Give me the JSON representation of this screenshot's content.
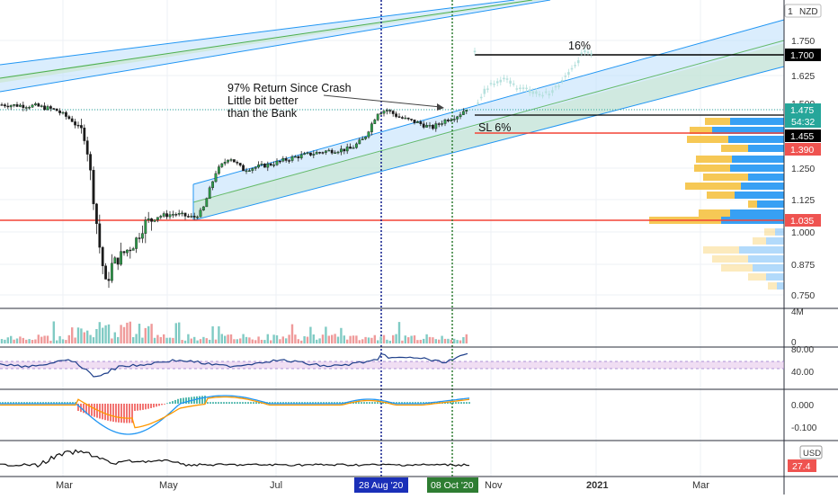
{
  "currency": "NZD",
  "volume_currency": "USD",
  "colors": {
    "up": "#26a69a",
    "down": "#ef5350",
    "projection": "#b2dfdb",
    "channel_fill": "#bbdefb",
    "channel_line": "#2196f3",
    "channel_mid_fill": "#c8e6c9",
    "support_line": "#f44336",
    "target_line": "#000000",
    "vline_blue": "#0d1b8c",
    "vline_green": "#2e7d32",
    "macd_line": "#2196f3",
    "signal_line": "#ff9800",
    "rsi_line": "#1e3f8a",
    "vp_up": "#2196f3",
    "vp_down": "#f5c242"
  },
  "annotations": {
    "note_line1": "97% Return Since Crash",
    "note_line2": "Little bit better",
    "note_line3": "than the Bank",
    "target_pct": "16%",
    "stop_loss": "SL 6%"
  },
  "price_axis": {
    "ticks": [
      "1.750",
      "1.625",
      "1.500",
      "1.250",
      "1.125",
      "1.000",
      "0.875",
      "0.750"
    ],
    "top_tick": "1"
  },
  "price_labels": {
    "target": "1.700",
    "current": "1.475",
    "countdown": "54:32",
    "entry": "1.455",
    "stop": "1.390",
    "support": "1.035"
  },
  "time_axis": {
    "labels": [
      "Mar",
      "May",
      "Jul",
      "Nov",
      "2021",
      "Mar"
    ],
    "highlight_blue": "28 Aug '20",
    "highlight_green": "08 Oct '20"
  },
  "volume_axis": {
    "top": "4M",
    "bottom": "0"
  },
  "rsi_axis": {
    "upper": "80.00",
    "lower": "40.00"
  },
  "macd_axis": {
    "zero": "0.000",
    "neg": "-0.100"
  },
  "usd_panel": {
    "label": "USD",
    "value": "27.4"
  },
  "chart_data": {
    "type": "candlestick",
    "x": [
      "2020-01",
      "2020-02",
      "2020-03-05",
      "2020-03-12",
      "2020-03-19",
      "2020-03-26",
      "2020-04",
      "2020-05",
      "2020-06",
      "2020-07",
      "2020-08",
      "2020-09",
      "2020-10"
    ],
    "series": [
      {
        "values": [
          1.48,
          1.47,
          1.35,
          0.85,
          0.8,
          0.93,
          1.02,
          1.04,
          1.16,
          1.2,
          1.4,
          1.33,
          1.47
        ]
      }
    ],
    "levels": {
      "target": 1.7,
      "current": 1.475,
      "entry": 1.455,
      "stop": 1.39,
      "support": 1.035
    },
    "ylim": [
      0.72,
      1.92
    ]
  }
}
